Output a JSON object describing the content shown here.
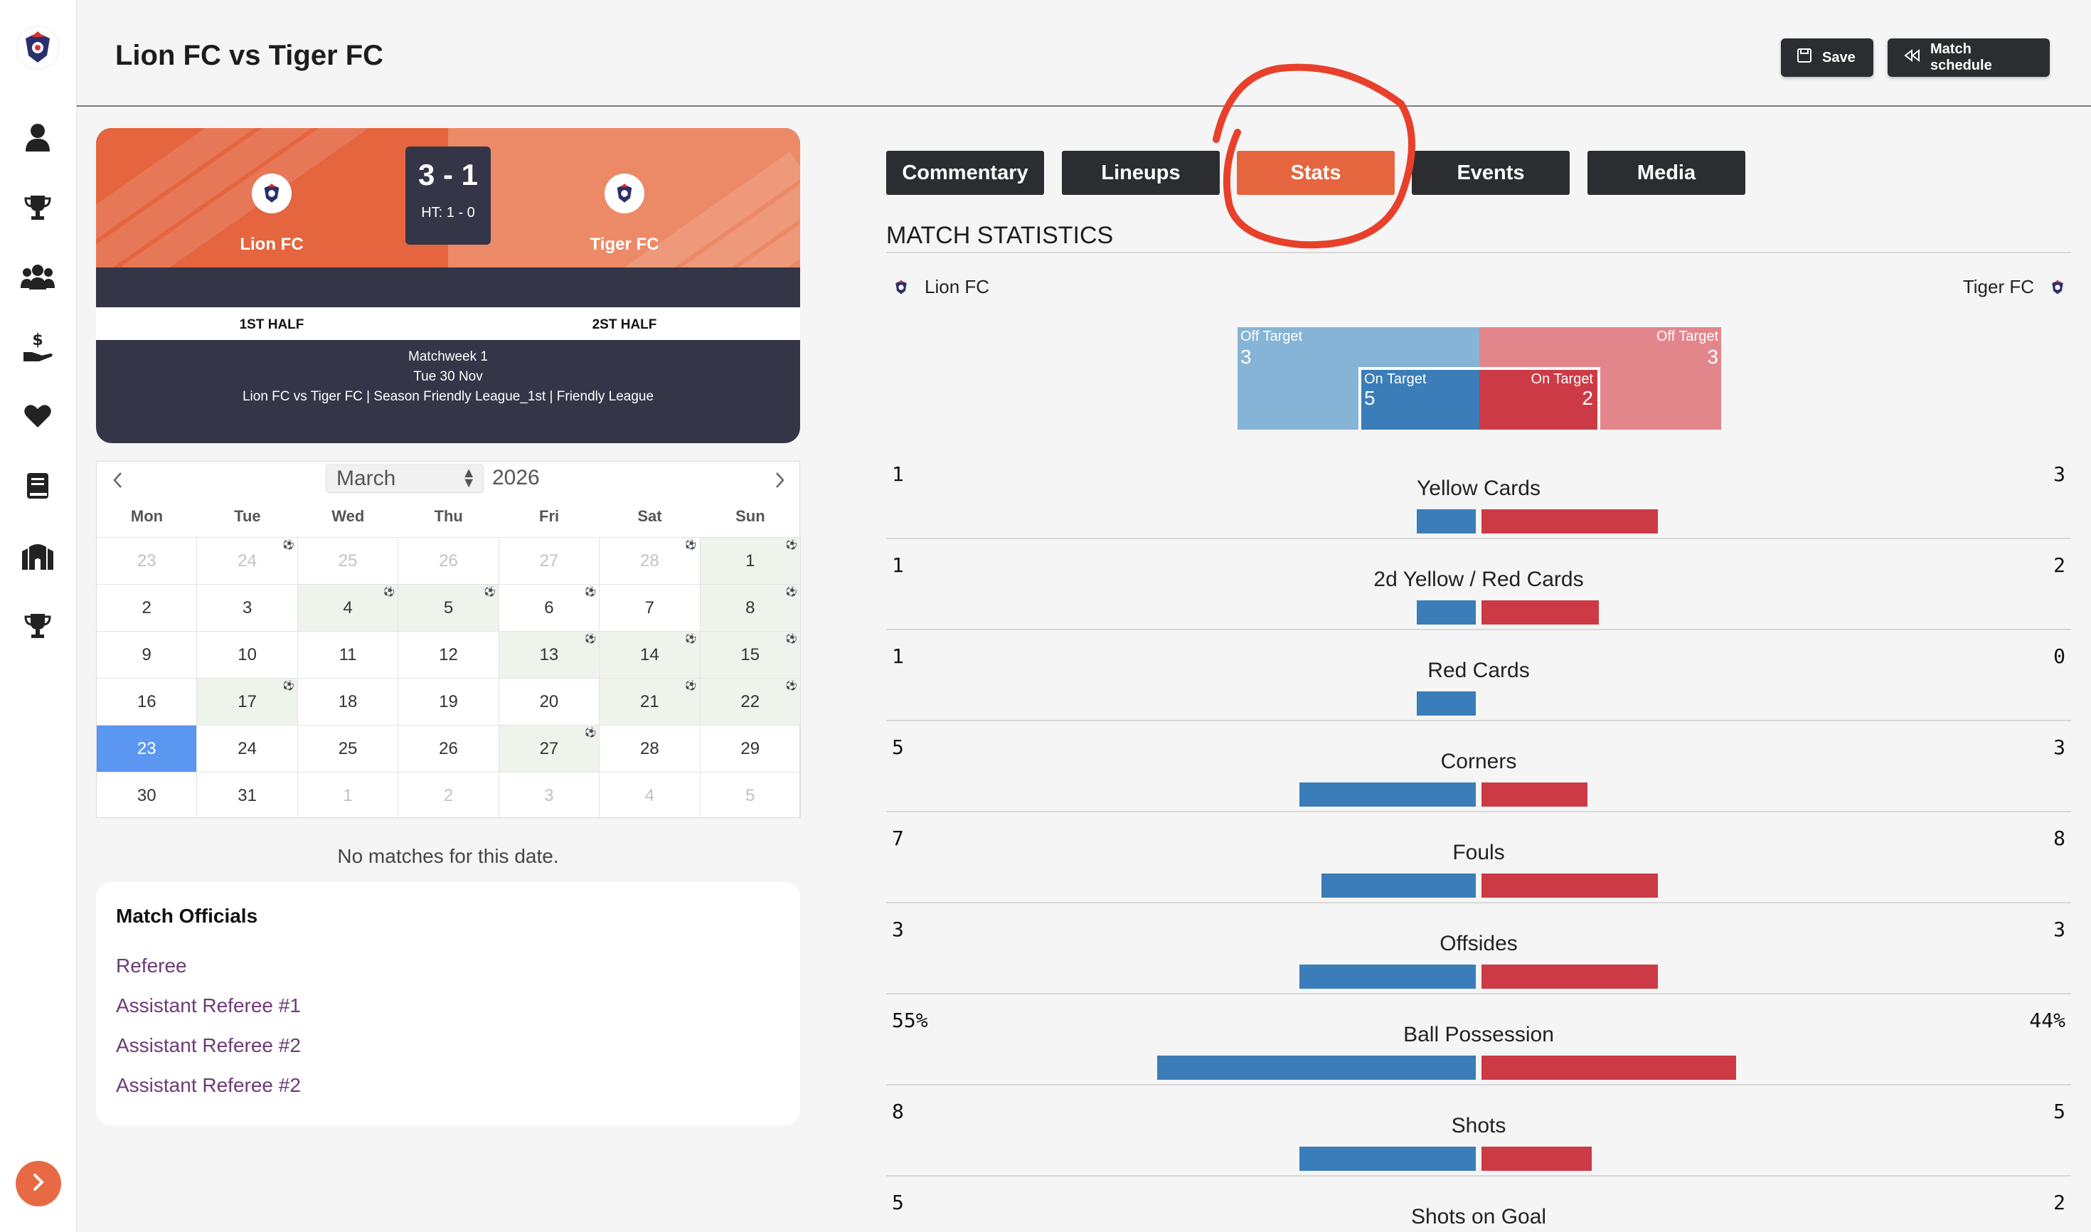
{
  "header": {
    "title": "Lion FC vs Tiger FC",
    "save_label": "Save",
    "schedule_label": "Match schedule"
  },
  "scoreboard": {
    "home_team": "Lion FC",
    "away_team": "Tiger FC",
    "score": "3 - 1",
    "halftime": "HT: 1 - 0",
    "first_half_label": "1ST HALF",
    "second_half_label": "2ST HALF",
    "matchweek": "Matchweek 1",
    "date": "Tue 30 Nov",
    "details": "Lion FC vs Tiger FC | Season Friendly League_1st | Friendly League"
  },
  "calendar": {
    "month": "March",
    "year": "2026",
    "weekdays": [
      "Mon",
      "Tue",
      "Wed",
      "Thu",
      "Fri",
      "Sat",
      "Sun"
    ],
    "days": [
      {
        "d": "23",
        "muted": true,
        "match": false,
        "ball": false
      },
      {
        "d": "24",
        "muted": true,
        "match": false,
        "ball": true
      },
      {
        "d": "25",
        "muted": true,
        "match": false,
        "ball": false
      },
      {
        "d": "26",
        "muted": true,
        "match": false,
        "ball": false
      },
      {
        "d": "27",
        "muted": true,
        "match": false,
        "ball": false
      },
      {
        "d": "28",
        "muted": true,
        "match": false,
        "ball": true
      },
      {
        "d": "1",
        "muted": false,
        "match": true,
        "ball": true
      },
      {
        "d": "2",
        "muted": false,
        "match": false,
        "ball": false
      },
      {
        "d": "3",
        "muted": false,
        "match": false,
        "ball": false
      },
      {
        "d": "4",
        "muted": false,
        "match": true,
        "ball": true
      },
      {
        "d": "5",
        "muted": false,
        "match": true,
        "ball": true
      },
      {
        "d": "6",
        "muted": false,
        "match": false,
        "ball": true
      },
      {
        "d": "7",
        "muted": false,
        "match": false,
        "ball": false
      },
      {
        "d": "8",
        "muted": false,
        "match": true,
        "ball": true
      },
      {
        "d": "9",
        "muted": false,
        "match": false,
        "ball": false
      },
      {
        "d": "10",
        "muted": false,
        "match": false,
        "ball": false
      },
      {
        "d": "11",
        "muted": false,
        "match": false,
        "ball": false
      },
      {
        "d": "12",
        "muted": false,
        "match": false,
        "ball": false
      },
      {
        "d": "13",
        "muted": false,
        "match": true,
        "ball": true
      },
      {
        "d": "14",
        "muted": false,
        "match": true,
        "ball": true
      },
      {
        "d": "15",
        "muted": false,
        "match": true,
        "ball": true
      },
      {
        "d": "16",
        "muted": false,
        "match": false,
        "ball": false
      },
      {
        "d": "17",
        "muted": false,
        "match": true,
        "ball": true
      },
      {
        "d": "18",
        "muted": false,
        "match": false,
        "ball": false
      },
      {
        "d": "19",
        "muted": false,
        "match": false,
        "ball": false
      },
      {
        "d": "20",
        "muted": false,
        "match": false,
        "ball": false
      },
      {
        "d": "21",
        "muted": false,
        "match": true,
        "ball": true
      },
      {
        "d": "22",
        "muted": false,
        "match": true,
        "ball": true
      },
      {
        "d": "23",
        "muted": false,
        "match": false,
        "ball": false,
        "today": true
      },
      {
        "d": "24",
        "muted": false,
        "match": false,
        "ball": false
      },
      {
        "d": "25",
        "muted": false,
        "match": false,
        "ball": false
      },
      {
        "d": "26",
        "muted": false,
        "match": false,
        "ball": false
      },
      {
        "d": "27",
        "muted": false,
        "match": true,
        "ball": true
      },
      {
        "d": "28",
        "muted": false,
        "match": false,
        "ball": false
      },
      {
        "d": "29",
        "muted": false,
        "match": false,
        "ball": false
      },
      {
        "d": "30",
        "muted": false,
        "match": false,
        "ball": false
      },
      {
        "d": "31",
        "muted": false,
        "match": false,
        "ball": false
      },
      {
        "d": "1",
        "muted": true,
        "match": false,
        "ball": false
      },
      {
        "d": "2",
        "muted": true,
        "match": false,
        "ball": false
      },
      {
        "d": "3",
        "muted": true,
        "match": false,
        "ball": false
      },
      {
        "d": "4",
        "muted": true,
        "match": false,
        "ball": false
      },
      {
        "d": "5",
        "muted": true,
        "match": false,
        "ball": false
      }
    ],
    "empty_message": "No matches for this date."
  },
  "officials": {
    "title": "Match Officials",
    "items": [
      "Referee",
      "Assistant Referee #1",
      "Assistant Referee #2",
      "Assistant Referee #2"
    ]
  },
  "tabs": [
    {
      "label": "Commentary",
      "active": false
    },
    {
      "label": "Lineups",
      "active": false
    },
    {
      "label": "Stats",
      "active": true
    },
    {
      "label": "Events",
      "active": false
    },
    {
      "label": "Media",
      "active": false
    }
  ],
  "stats": {
    "title": "MATCH STATISTICS",
    "home_team": "Lion FC",
    "away_team": "Tiger FC",
    "shots_chart": {
      "off_target_label": "Off Target",
      "on_target_label": "On Target",
      "home_off_target": "3",
      "home_on_target": "5",
      "away_off_target": "3",
      "away_on_target": "2"
    },
    "rows": [
      {
        "label": "Yellow Cards",
        "home": "1",
        "away": "3",
        "home_val": 1,
        "away_val": 3
      },
      {
        "label": "2d Yellow / Red Cards",
        "home": "1",
        "away": "2",
        "home_val": 1,
        "away_val": 2
      },
      {
        "label": "Red Cards",
        "home": "1",
        "away": "0",
        "home_val": 1,
        "away_val": 0
      },
      {
        "label": "Corners",
        "home": "5",
        "away": "3",
        "home_val": 5,
        "away_val": 3
      },
      {
        "label": "Fouls",
        "home": "7",
        "away": "8",
        "home_val": 7,
        "away_val": 8
      },
      {
        "label": "Offsides",
        "home": "3",
        "away": "3",
        "home_val": 3,
        "away_val": 3
      },
      {
        "label": "Ball Possession",
        "home": "55%",
        "away": "44%",
        "home_val": 55,
        "away_val": 44
      },
      {
        "label": "Shots",
        "home": "8",
        "away": "5",
        "home_val": 8,
        "away_val": 5
      },
      {
        "label": "Shots on Goal",
        "home": "5",
        "away": "2",
        "home_val": 5,
        "away_val": 2
      }
    ]
  },
  "colors": {
    "accent": "#e4653e",
    "dark": "#2c2d31",
    "home_bar": "#3a7db9",
    "away_bar": "#cc3a45",
    "officials_link": "#6d3a78",
    "annotation": "#e8402a"
  },
  "icons": {
    "sidebar": [
      "club-logo-icon",
      "user-icon",
      "trophy-icon",
      "team-icon",
      "finance-icon",
      "heart-icon",
      "book-icon",
      "stadium-icon",
      "cup-icon",
      "chevron-right-icon"
    ]
  }
}
